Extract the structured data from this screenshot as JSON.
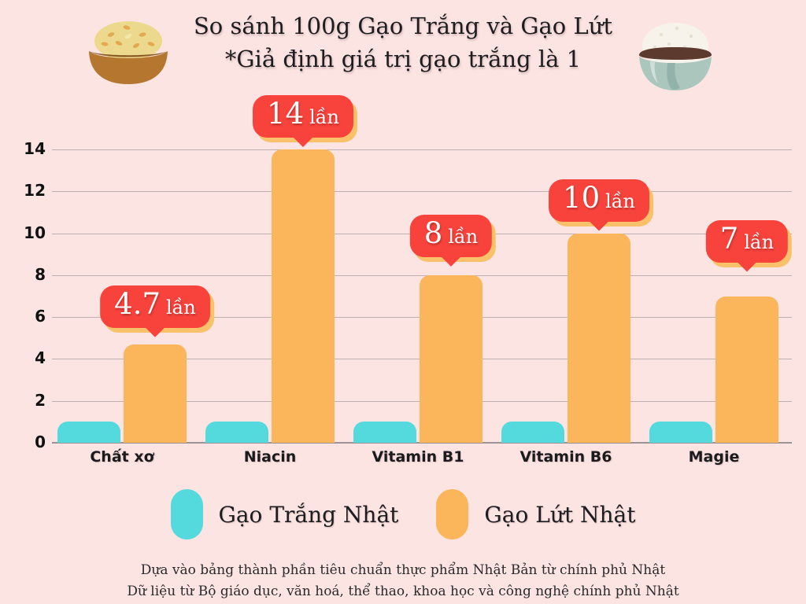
{
  "header": {
    "title_line1": "So sánh 100g Gạo Trắng và Gạo Lứt",
    "title_line2": "*Giả định giá trị gạo trắng là 1"
  },
  "icons": {
    "left": "brown-rice-bowl",
    "right": "white-rice-bowl"
  },
  "chart_data": {
    "type": "bar",
    "title": "So sánh 100g Gạo Trắng và Gạo Lứt",
    "subtitle": "*Giả định giá trị gạo trắng là 1",
    "categories": [
      "Chất xơ",
      "Niacin",
      "Vitamin B1",
      "Vitamin B6",
      "Magie"
    ],
    "series": [
      {
        "name": "Gạo Trắng Nhật",
        "color": "#54dadd",
        "values": [
          1,
          1,
          1,
          1,
          1
        ]
      },
      {
        "name": "Gạo Lứt Nhật",
        "color": "#fbb65b",
        "values": [
          4.7,
          14,
          8,
          10,
          7
        ]
      }
    ],
    "data_labels": [
      {
        "value": "4.7",
        "unit": "lần"
      },
      {
        "value": "14",
        "unit": "lần"
      },
      {
        "value": "8",
        "unit": "lần"
      },
      {
        "value": "10",
        "unit": "lần"
      },
      {
        "value": "7",
        "unit": "lần"
      }
    ],
    "ylim": [
      0,
      14
    ],
    "yticks": [
      0,
      2,
      4,
      6,
      8,
      10,
      12,
      14
    ],
    "grid": true,
    "legend_position": "bottom"
  },
  "legend": {
    "items": [
      {
        "label": "Gạo Trắng Nhật",
        "color": "#54dadd"
      },
      {
        "label": "Gạo Lứt Nhật",
        "color": "#fbb65b"
      }
    ]
  },
  "footer": {
    "line1": "Dựa vào bảng thành phần tiêu chuẩn thực phẩm Nhật Bản từ chính phủ Nhật",
    "line2": "Dữ liệu từ Bộ giáo dục, văn hoá, thể thao, khoa học và công nghệ chính phủ Nhật"
  },
  "colors": {
    "background": "#fbe4e2",
    "white_rice_bar": "#54dadd",
    "brown_rice_bar": "#fbb65b",
    "badge_red": "#f8423c",
    "badge_shadow": "#f9c169",
    "gridline": "#bcb0b1",
    "text_dark": "#1d1d1f"
  }
}
